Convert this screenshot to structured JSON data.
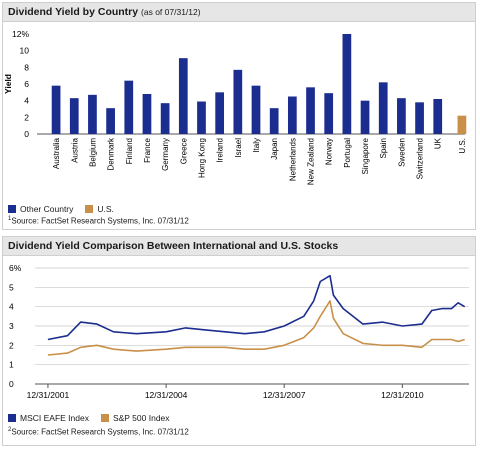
{
  "colors": {
    "other": "#1b2d8f",
    "us": "#c9904a",
    "msci": "#1b2d8f",
    "sp": "#c9904a",
    "grid": "#c8c8c8"
  },
  "chart1": {
    "title": "Dividend Yield by Country",
    "subtitle": "(as of 07/31/12)",
    "legend": {
      "other": "Other Country",
      "us": "U.S."
    },
    "source_mark": "1",
    "source": "Source: FactSet Research Systems, Inc. 07/31/12"
  },
  "chart2": {
    "title": "Dividend Yield Comparison Between International and U.S. Stocks",
    "legend": {
      "msci": "MSCI EAFE Index",
      "sp": "S&P 500 Index"
    },
    "source_mark": "2",
    "source": "Source: FactSet Research Systems, Inc. 07/31/12"
  },
  "chart_data": [
    {
      "type": "bar",
      "title": "Dividend Yield by Country",
      "subtitle": "(as of 07/31/12)",
      "ylabel": "Yield",
      "ylim": [
        0,
        12
      ],
      "yticks": [
        "0",
        "2",
        "4",
        "6",
        "8",
        "10",
        "12%"
      ],
      "grid": false,
      "legend_position": "bottom-left",
      "categories": [
        "Australia",
        "Austria",
        "Belgium",
        "Denmark",
        "Finland",
        "France",
        "Germany",
        "Greece",
        "Hong Kong",
        "Ireland",
        "Israel",
        "Italy",
        "Japan",
        "Netherlands",
        "New Zealand",
        "Norway",
        "Portugal",
        "Singapore",
        "Spain",
        "Sweden",
        "Switzerland",
        "UK",
        "U.S."
      ],
      "values": [
        5.8,
        4.3,
        4.7,
        3.1,
        6.4,
        4.8,
        3.7,
        9.1,
        3.9,
        5.0,
        7.7,
        5.8,
        3.1,
        4.5,
        5.6,
        4.9,
        12.0,
        4.0,
        6.2,
        4.3,
        3.8,
        4.2,
        2.2
      ],
      "series_membership": [
        "Other Country",
        "Other Country",
        "Other Country",
        "Other Country",
        "Other Country",
        "Other Country",
        "Other Country",
        "Other Country",
        "Other Country",
        "Other Country",
        "Other Country",
        "Other Country",
        "Other Country",
        "Other Country",
        "Other Country",
        "Other Country",
        "Other Country",
        "Other Country",
        "Other Country",
        "Other Country",
        "Other Country",
        "Other Country",
        "U.S."
      ]
    },
    {
      "type": "line",
      "title": "Dividend Yield Comparison Between International and U.S. Stocks",
      "ylim": [
        0,
        6
      ],
      "yticks": [
        "0",
        "1",
        "2",
        "3",
        "4",
        "5",
        "6%"
      ],
      "xlim": [
        "2001-12-31",
        "2012-07-31"
      ],
      "xticks": [
        "12/31/2001",
        "12/31/2004",
        "12/31/2007",
        "12/31/2010"
      ],
      "grid": true,
      "legend_position": "bottom-left",
      "x": [
        "2001-12-31",
        "2002-06-30",
        "2002-10-31",
        "2003-03-31",
        "2003-08-31",
        "2004-03-31",
        "2004-12-31",
        "2005-06-30",
        "2005-12-31",
        "2006-06-30",
        "2006-12-31",
        "2007-06-30",
        "2007-12-31",
        "2008-06-30",
        "2008-09-30",
        "2008-11-30",
        "2009-02-28",
        "2009-03-31",
        "2009-06-30",
        "2009-12-31",
        "2010-06-30",
        "2010-12-31",
        "2011-06-30",
        "2011-09-30",
        "2011-12-31",
        "2012-03-31",
        "2012-05-31",
        "2012-07-31"
      ],
      "series": [
        {
          "name": "MSCI EAFE Index",
          "values": [
            2.3,
            2.5,
            3.2,
            3.1,
            2.7,
            2.6,
            2.7,
            2.9,
            2.8,
            2.7,
            2.6,
            2.7,
            3.0,
            3.5,
            4.3,
            5.3,
            5.6,
            4.6,
            3.9,
            3.1,
            3.2,
            3.0,
            3.1,
            3.8,
            3.9,
            3.9,
            4.2,
            4.0
          ]
        },
        {
          "name": "S&P 500 Index",
          "values": [
            1.5,
            1.6,
            1.9,
            2.0,
            1.8,
            1.7,
            1.8,
            1.9,
            1.9,
            1.9,
            1.8,
            1.8,
            2.0,
            2.4,
            2.9,
            3.5,
            4.3,
            3.4,
            2.6,
            2.1,
            2.0,
            2.0,
            1.9,
            2.3,
            2.3,
            2.3,
            2.2,
            2.3
          ]
        }
      ]
    }
  ]
}
